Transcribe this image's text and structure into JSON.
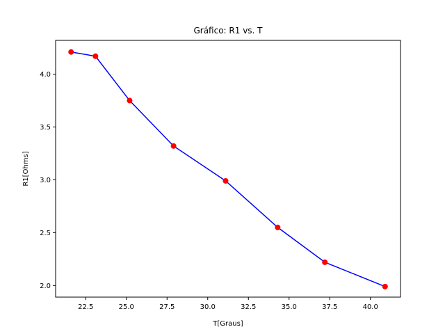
{
  "chart_data": {
    "type": "line",
    "title": "Gráfico: R1 vs. T",
    "xlabel": "T[Graus]",
    "ylabel": "R1[Ohms]",
    "xlim": [
      20.65,
      41.85
    ],
    "ylim": [
      1.89,
      4.32
    ],
    "xticks": [
      22.5,
      25.0,
      27.5,
      30.0,
      32.5,
      35.0,
      37.5,
      40.0
    ],
    "xtick_labels": [
      "22.5",
      "25.0",
      "27.5",
      "30.0",
      "32.5",
      "35.0",
      "37.5",
      "40.0"
    ],
    "yticks": [
      2.0,
      2.5,
      3.0,
      3.5,
      4.0
    ],
    "ytick_labels": [
      "2.0",
      "2.5",
      "3.0",
      "3.5",
      "4.0"
    ],
    "grid": false,
    "series": [
      {
        "x": [
          21.6,
          23.1,
          25.2,
          27.9,
          31.1,
          34.3,
          37.2,
          40.9
        ],
        "y": [
          4.21,
          4.17,
          3.75,
          3.32,
          2.99,
          2.55,
          2.22,
          1.99
        ],
        "line_color": "#0000ff",
        "marker_color": "#ff0000"
      }
    ]
  }
}
